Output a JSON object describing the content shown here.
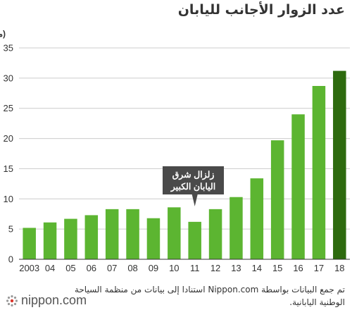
{
  "chart_data": {
    "type": "bar",
    "title": "عدد الزوار الأجانب لليابان",
    "ylabel": "(مليون)",
    "xlabel": "",
    "ylim": [
      0,
      35
    ],
    "yticks": [
      0,
      5,
      10,
      15,
      20,
      25,
      30,
      35
    ],
    "categories": [
      "2003",
      "04",
      "05",
      "06",
      "07",
      "08",
      "09",
      "10",
      "11",
      "12",
      "13",
      "14",
      "15",
      "16",
      "17",
      "18"
    ],
    "values": [
      5.2,
      6.1,
      6.7,
      7.3,
      8.3,
      8.3,
      6.8,
      8.6,
      6.2,
      8.3,
      10.3,
      13.4,
      19.7,
      24.0,
      28.7,
      31.2
    ],
    "highlight_index": 15,
    "grid": true,
    "colors": {
      "bar": "#5cb531",
      "bar_highlight": "#2d6a0e",
      "annotation_bg": "#4a4a4a",
      "grid": "#cccccc",
      "axis": "#333333"
    },
    "annotation": {
      "category": "11",
      "lines": [
        "زلزال شرق",
        "اليابان الكبير"
      ]
    }
  },
  "source_note": "تم جمع البيانات بواسطة Nippon.com استنادا إلى بيانات من منظمة السياحة الوطنية اليابانية.",
  "logo_text": "nippon.com",
  "logo_icon": "nippon-flower-icon"
}
